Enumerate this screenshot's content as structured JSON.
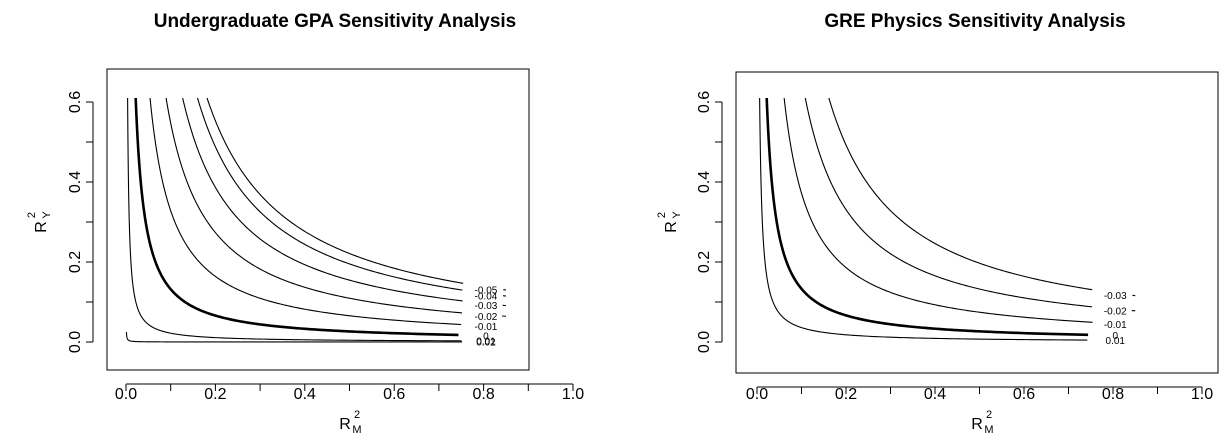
{
  "chart_data": [
    {
      "type": "line",
      "title": "Undergraduate GPA Sensitivity Analysis",
      "xlabel": "R",
      "xlabel_sup": "2",
      "xlabel_sub": "M",
      "ylabel": "R",
      "ylabel_sup": "2",
      "ylabel_sub": "Y",
      "xlim": [
        0,
        1.0
      ],
      "ylim": [
        0,
        0.6
      ],
      "x_ticks": [
        "0.0",
        "0.2",
        "0.4",
        "0.6",
        "0.8",
        "1.0"
      ],
      "y_ticks": [
        "0.0",
        "0.2",
        "0.4",
        "0.6"
      ],
      "grid": false,
      "series": [
        {
          "name": "0.02",
          "k": 2.5e-05,
          "bold": false
        },
        {
          "name": "0.01",
          "k": 0.0022,
          "bold": false
        },
        {
          "name": "0",
          "k": 0.0132,
          "bold": true
        },
        {
          "name": "-0.01",
          "k": 0.0328,
          "bold": false
        },
        {
          "name": "-0.02",
          "k": 0.0547,
          "bold": false
        },
        {
          "name": "-0.03",
          "k": 0.0773,
          "bold": false
        },
        {
          "name": "-0.04",
          "k": 0.0976,
          "bold": false
        },
        {
          "name": "-0.05",
          "k": 0.1106,
          "bold": false
        }
      ]
    },
    {
      "type": "line",
      "title": "GRE Physics Sensitivity Analysis",
      "xlabel": "R",
      "xlabel_sup": "2",
      "xlabel_sub": "M",
      "ylabel": "R",
      "ylabel_sup": "2",
      "ylabel_sub": "Y",
      "xlim": [
        0,
        1.0
      ],
      "ylim": [
        0,
        0.6
      ],
      "x_ticks": [
        "0.0",
        "0.2",
        "0.4",
        "0.6",
        "0.8",
        "1.0"
      ],
      "y_ticks": [
        "0.0",
        "0.2",
        "0.4",
        "0.6"
      ],
      "grid": false,
      "series": [
        {
          "name": "0.01",
          "k": 0.0036,
          "bold": false
        },
        {
          "name": "0",
          "k": 0.0133,
          "bold": true
        },
        {
          "name": "-0.01",
          "k": 0.0372,
          "bold": false
        },
        {
          "name": "-0.02",
          "k": 0.0662,
          "bold": false
        },
        {
          "name": "-0.03",
          "k": 0.0985,
          "bold": false
        }
      ]
    }
  ]
}
